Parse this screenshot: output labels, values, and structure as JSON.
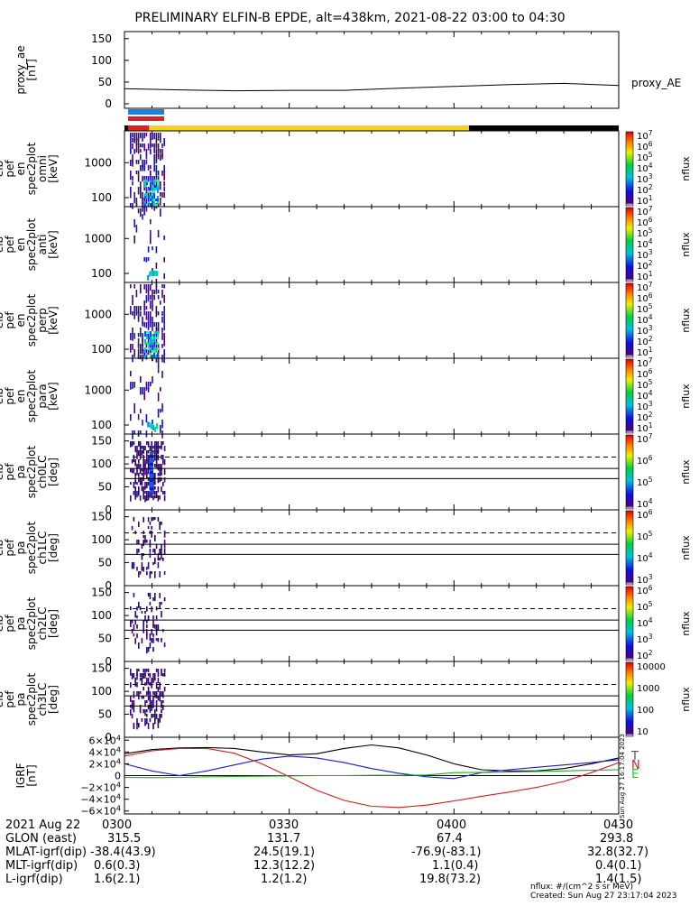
{
  "title": "PRELIMINARY ELFIN-B EPDE, alt=438km, 2021-08-22 03:00 to 04:30",
  "chart_data": [
    {
      "type": "line",
      "panel": "proxy_ae",
      "ylabel": [
        "proxy_ae",
        "[nT]"
      ],
      "yticks": [
        "150",
        "100",
        "50",
        "0"
      ],
      "ylim": [
        0,
        160
      ],
      "legend": "proxy_AE",
      "x_min": [
        0,
        10,
        20,
        30,
        40,
        50,
        60,
        70,
        80,
        90
      ],
      "values": [
        35,
        32,
        30,
        31,
        31,
        36,
        40,
        44,
        47,
        42
      ]
    },
    {
      "type": "bar",
      "panel": "indicator-bars",
      "series": [
        {
          "name": "blue-bar",
          "color": "#1f7fe0"
        },
        {
          "name": "red-bar",
          "color": "#e02020"
        },
        {
          "name": "status-bar",
          "segments": [
            "red",
            "yellow",
            "black"
          ]
        }
      ]
    },
    {
      "type": "heatmap",
      "panel": "omni",
      "ylabel": [
        "elb",
        "pef",
        "en",
        "spec2plot",
        "omni",
        "[keV]"
      ],
      "yticks": [
        "1000",
        "100"
      ],
      "colorbar": {
        "label": "nflux",
        "ticks": [
          "10^7",
          "10^6",
          "10^5",
          "10^4",
          "10^3",
          "10^2",
          "10^1"
        ]
      }
    },
    {
      "type": "heatmap",
      "panel": "anti",
      "ylabel": [
        "elb",
        "pef",
        "en",
        "spec2plot",
        "anti",
        "[keV]"
      ],
      "yticks": [
        "1000",
        "100"
      ],
      "colorbar": {
        "label": "nflux",
        "ticks": [
          "10^7",
          "10^6",
          "10^5",
          "10^4",
          "10^3",
          "10^2",
          "10^1"
        ]
      }
    },
    {
      "type": "heatmap",
      "panel": "perp",
      "ylabel": [
        "elb",
        "pef",
        "en",
        "spec2plot",
        "perp",
        "[keV]"
      ],
      "yticks": [
        "1000",
        "100"
      ],
      "colorbar": {
        "label": "nflux",
        "ticks": [
          "10^7",
          "10^6",
          "10^5",
          "10^4",
          "10^3",
          "10^2",
          "10^1"
        ]
      }
    },
    {
      "type": "heatmap",
      "panel": "para",
      "ylabel": [
        "elb",
        "pef",
        "en",
        "spec2plot",
        "para",
        "[keV]"
      ],
      "yticks": [
        "1000",
        "100"
      ],
      "colorbar": {
        "label": "nflux",
        "ticks": [
          "10^7",
          "10^6",
          "10^5",
          "10^4",
          "10^3",
          "10^2",
          "10^1"
        ]
      }
    },
    {
      "type": "heatmap",
      "panel": "ch0LC",
      "ylabel": [
        "elb",
        "pef",
        "pa",
        "spec2plot",
        "ch0LC",
        "[deg]"
      ],
      "yticks": [
        "150",
        "100",
        "50",
        "0"
      ],
      "colorbar": {
        "label": "nflux",
        "ticks": [
          "10^7",
          "10^6",
          "10^5",
          "10^4"
        ]
      }
    },
    {
      "type": "heatmap",
      "panel": "ch1LC",
      "ylabel": [
        "elb",
        "pef",
        "pa",
        "spec2plot",
        "ch1LC",
        "[deg]"
      ],
      "yticks": [
        "150",
        "100",
        "50",
        "0"
      ],
      "colorbar": {
        "label": "nflux",
        "ticks": [
          "10^6",
          "10^5",
          "10^4",
          "10^3"
        ]
      }
    },
    {
      "type": "heatmap",
      "panel": "ch2LC",
      "ylabel": [
        "elb",
        "pef",
        "pa",
        "spec2plot",
        "ch2LC",
        "[deg]"
      ],
      "yticks": [
        "150",
        "100",
        "50",
        "0"
      ],
      "colorbar": {
        "label": "nflux",
        "ticks": [
          "10^6",
          "10^5",
          "10^4",
          "10^3",
          "10^2"
        ]
      }
    },
    {
      "type": "heatmap",
      "panel": "ch3LC",
      "ylabel": [
        "elb",
        "pef",
        "pa",
        "spec2plot",
        "ch3LC",
        "[deg]"
      ],
      "yticks": [
        "150",
        "100",
        "50",
        "0"
      ],
      "colorbar": {
        "label": "nflux",
        "ticks": [
          "10000",
          "1000",
          "100",
          "10"
        ]
      }
    },
    {
      "type": "line",
      "panel": "igrf",
      "ylabel": [
        "IGRF",
        "[nT]"
      ],
      "yticks": [
        "6×10^4",
        "4×10^4",
        "2×10^4",
        "0",
        "−2×10^4",
        "−4×10^4",
        "−6×10^4"
      ],
      "ylim": [
        -65000,
        65000
      ],
      "legend": [
        "T",
        "N",
        "E"
      ],
      "x_min": [
        0,
        5,
        10,
        15,
        20,
        25,
        30,
        35,
        40,
        45,
        50,
        55,
        60,
        65,
        70,
        75,
        80,
        85,
        90
      ],
      "series": [
        {
          "name": "T",
          "color": "#000000",
          "values": [
            37000,
            44000,
            47000,
            47500,
            46000,
            40000,
            35000,
            37000,
            46000,
            52000,
            47000,
            35000,
            20000,
            10000,
            8000,
            8000,
            12000,
            20000,
            30000
          ]
        },
        {
          "name": "N",
          "color": "#1a1acc",
          "values": [
            20000,
            8000,
            0,
            8000,
            18000,
            28000,
            33000,
            30000,
            22000,
            12000,
            4000,
            -2000,
            -5000,
            5000,
            10000,
            14000,
            18000,
            22000,
            27000
          ]
        },
        {
          "name": "E",
          "color": "#cc2020",
          "values": [
            33000,
            42000,
            46000,
            46000,
            38000,
            20000,
            -2000,
            -25000,
            -42000,
            -52000,
            -54000,
            -50000,
            -43000,
            -35000,
            -28000,
            -20000,
            -10000,
            5000,
            22000
          ]
        },
        {
          "name": "G",
          "color": "#20aa20",
          "values": [
            -3000,
            -3500,
            -3000,
            -2000,
            -1500,
            -1000,
            -500,
            0,
            0,
            500,
            500,
            1000,
            5000,
            5500,
            6000,
            7000,
            8000,
            9000,
            10000
          ]
        }
      ]
    }
  ],
  "sidebar_stamp": "Sun Aug 27 16:17:04 2023",
  "ephemeris": {
    "rows": [
      {
        "label": "2021 Aug 22",
        "values": [
          "0300",
          "0330",
          "0400",
          "0430"
        ]
      },
      {
        "label": "GLON (east)",
        "values": [
          "315.5",
          "131.7",
          "67.4",
          "293.8"
        ]
      },
      {
        "label": "MLAT-igrf(dip)",
        "values": [
          "-38.4(43.9)",
          "24.5(19.1)",
          "-76.9(-83.1)",
          "32.8(32.7)"
        ]
      },
      {
        "label": "MLT-igrf(dip)",
        "values": [
          "0.6(0.3)",
          "12.3(12.2)",
          "1.1(0.4)",
          "0.4(0.1)"
        ]
      },
      {
        "label": "L-igrf(dip)",
        "values": [
          "1.6(2.1)",
          "1.2(1.2)",
          "19.8(73.2)",
          "1.4(1.5)"
        ]
      }
    ]
  },
  "footer": {
    "units": "nflux: #/(cm^2 s sr MeV)",
    "created": "Created: Sun Aug 27 23:17:04 2023"
  }
}
